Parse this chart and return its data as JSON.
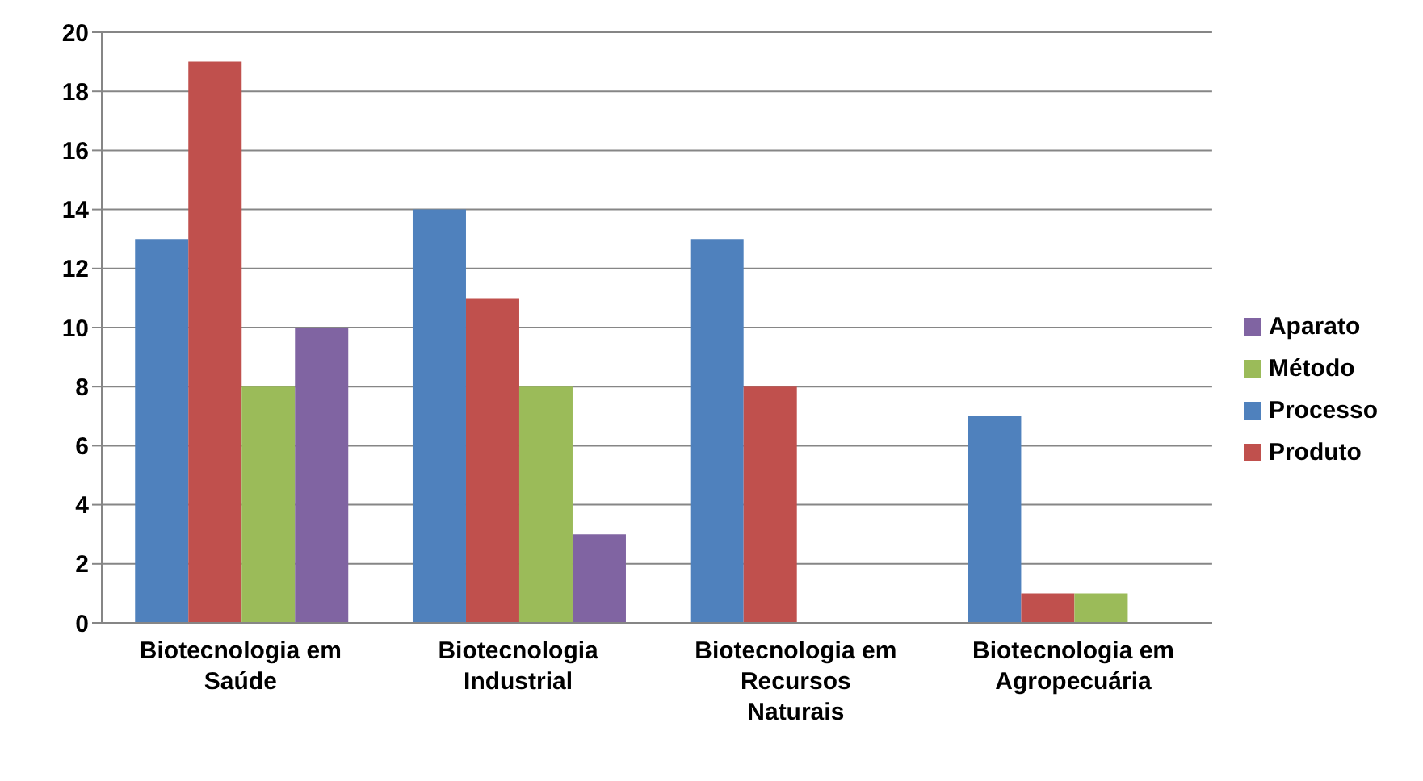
{
  "chart_data": {
    "type": "bar",
    "categories": [
      "Biotecnologia em Saúde",
      "Biotecnologia Industrial",
      "Biotecnologia em Recursos Naturais",
      "Biotecnologia em Agropecuária"
    ],
    "series": [
      {
        "name": "Processo",
        "color": "#4f81bd",
        "values": [
          13,
          14,
          13,
          7
        ]
      },
      {
        "name": "Produto",
        "color": "#c0504d",
        "values": [
          19,
          11,
          8,
          1
        ]
      },
      {
        "name": "Método",
        "color": "#9bbb59",
        "values": [
          8,
          8,
          0,
          1
        ]
      },
      {
        "name": "Aparato",
        "color": "#8064a2",
        "values": [
          10,
          3,
          0,
          0
        ]
      }
    ],
    "ylim": [
      0,
      20
    ],
    "yticks": [
      0,
      2,
      4,
      6,
      8,
      10,
      12,
      14,
      16,
      18,
      20
    ],
    "grid": "y",
    "legend": "right"
  }
}
